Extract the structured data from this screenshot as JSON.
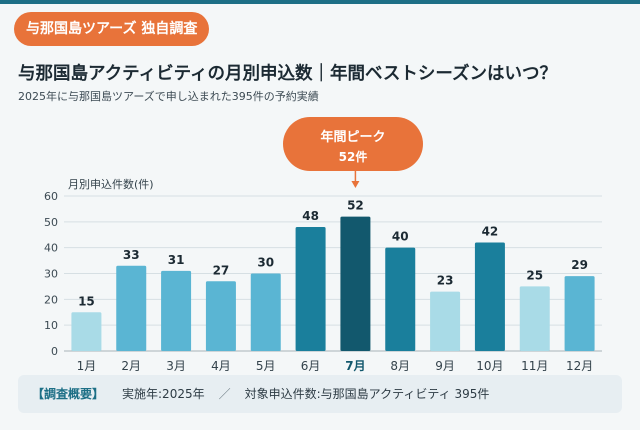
{
  "header": {
    "badge": "与那国島ツアーズ 独自調査",
    "title": "与那国島アクティビティの月別申込数｜年間ベストシーズンはいつ？",
    "subtitle": "2025年に与那国島ツアーズで申し込まれた395件の予約実績"
  },
  "callout": {
    "line1": "年間ピーク",
    "line2": "52件"
  },
  "footer": {
    "heading": "【調査概要】",
    "item1": "実施年:2025年",
    "separator": "／",
    "item2": "対象申込件数:与那国島アクティビティ 395件"
  },
  "colors": {
    "peak": "#12586d",
    "high": "#1a7f9c",
    "mid": "#5ab5d3",
    "low": "#a9dbe7",
    "accent": "#e8733a"
  },
  "chart_data": {
    "type": "bar",
    "ylabel": "月別申込件数(件)",
    "categories": [
      "1月",
      "2月",
      "3月",
      "4月",
      "5月",
      "6月",
      "7月",
      "8月",
      "9月",
      "10月",
      "11月",
      "12月"
    ],
    "values": [
      15,
      33,
      31,
      27,
      30,
      48,
      52,
      40,
      23,
      42,
      25,
      29
    ],
    "levels": [
      "low",
      "mid",
      "mid",
      "mid",
      "mid",
      "high",
      "peak",
      "high",
      "low",
      "high",
      "low",
      "mid"
    ],
    "ylim": [
      0,
      60
    ],
    "yticks": [
      0,
      10,
      20,
      30,
      40,
      50,
      60
    ],
    "grid": true,
    "highlight_index": 6
  }
}
